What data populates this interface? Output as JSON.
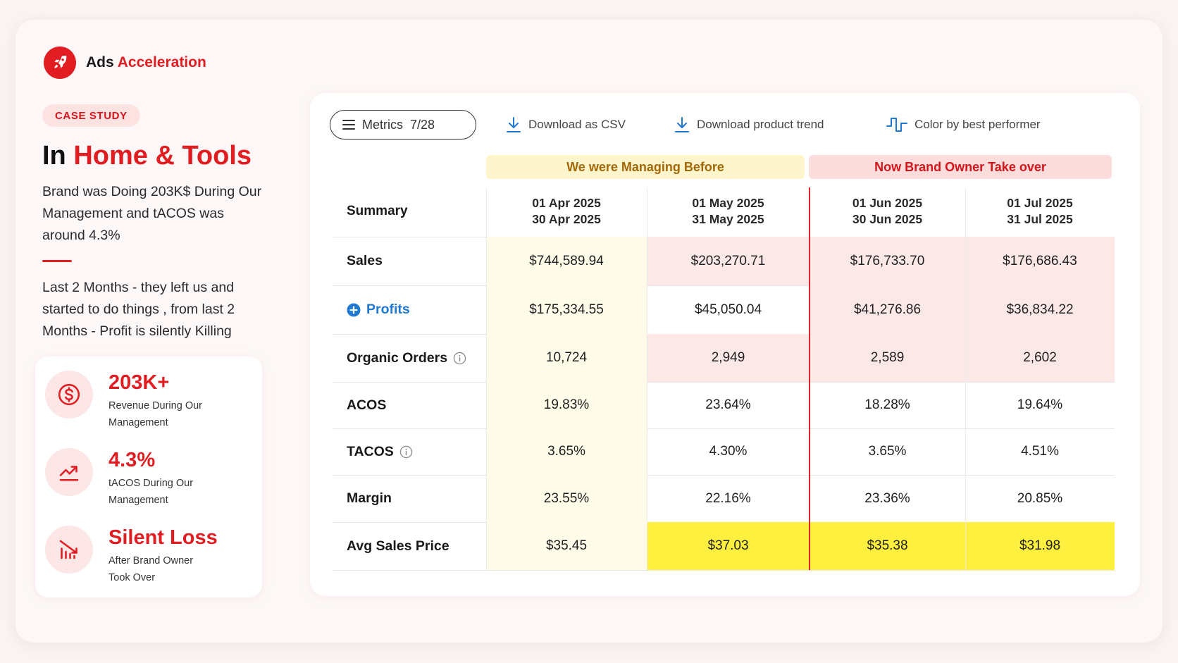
{
  "brand": {
    "name_part1": "Ads",
    "name_part2": "Acceleration"
  },
  "badge": "CASE STUDY",
  "headline": {
    "prefix": "In",
    "highlight": "Home & Tools"
  },
  "intro": "Brand was Doing 203K$ During Our Management and tACOS was around 4.3%",
  "detail": "Last 2 Months - they left us and started to do things , from last 2 Months - Profit is silently Killing",
  "stats": [
    {
      "icon": "dollar-icon",
      "value": "203K+",
      "label": "Revenue During Our Management"
    },
    {
      "icon": "trend-up-icon",
      "value": "4.3%",
      "label": "tACOS During Our Management"
    },
    {
      "icon": "bar-chart-down-icon",
      "value": "Silent Loss",
      "label": "After Brand Owner Took Over"
    }
  ],
  "toolbar": {
    "metrics_label": "Metrics",
    "metrics_count": "7/28",
    "download_csv": "Download as CSV",
    "download_trend": "Download product trend",
    "color_by": "Color by best performer"
  },
  "groups": {
    "before": "We were Managing Before",
    "after": "Now Brand Owner Take over"
  },
  "table": {
    "summary_header": "Summary",
    "columns": [
      {
        "start": "01 Apr 2025",
        "end": "30 Apr 2025"
      },
      {
        "start": "01 May 2025",
        "end": "31 May 2025"
      },
      {
        "start": "01 Jun 2025",
        "end": "30 Jun 2025"
      },
      {
        "start": "01 Jul 2025",
        "end": "31 Jul 2025"
      }
    ],
    "rows": [
      {
        "label": "Sales",
        "values": [
          "$744,589.94",
          "$203,270.71",
          "$176,733.70",
          "$176,686.43"
        ]
      },
      {
        "label": "Profits",
        "values": [
          "$175,334.55",
          "$45,050.04",
          "$41,276.86",
          "$36,834.22"
        ]
      },
      {
        "label": "Organic Orders",
        "values": [
          "10,724",
          "2,949",
          "2,589",
          "2,602"
        ]
      },
      {
        "label": "ACOS",
        "values": [
          "19.83%",
          "23.64%",
          "18.28%",
          "19.64%"
        ]
      },
      {
        "label": "TACOS",
        "values": [
          "3.65%",
          "4.30%",
          "3.65%",
          "4.51%"
        ]
      },
      {
        "label": "Margin",
        "values": [
          "23.55%",
          "22.16%",
          "23.36%",
          "20.85%"
        ]
      },
      {
        "label": "Avg Sales Price",
        "values": [
          "$35.45",
          "$37.03",
          "$35.38",
          "$31.98"
        ]
      }
    ]
  },
  "colors": {
    "accent": "#e11d22",
    "before_tint": "#fefbe9",
    "loss_tint": "#fde8e8",
    "highlight": "#fff03f",
    "link": "#1f78d1"
  }
}
